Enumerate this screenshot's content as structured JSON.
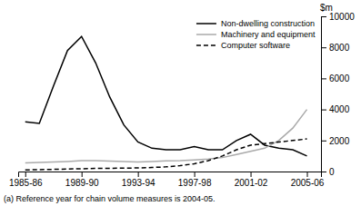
{
  "chart_data": {
    "type": "line",
    "ylabel": "$m",
    "annotations": [
      "(a) Reference year for chain volume measures is 2004-05."
    ],
    "x": [
      1985.5,
      1986.5,
      1987.5,
      1988.5,
      1989.5,
      1990.5,
      1991.5,
      1992.5,
      1993.5,
      1994.5,
      1995.5,
      1996.5,
      1997.5,
      1998.5,
      1999.5,
      2000.5,
      2001.5,
      2002.5,
      2003.5,
      2004.5,
      2005.5
    ],
    "xlim": [
      1985.0,
      2006.5
    ],
    "xticks": [
      {
        "value": 1985.5,
        "label": "1985-86"
      },
      {
        "value": 1989.5,
        "label": "1989-90"
      },
      {
        "value": 1993.5,
        "label": "1993-94"
      },
      {
        "value": 1997.5,
        "label": "1997-98"
      },
      {
        "value": 2001.5,
        "label": "2001-02"
      },
      {
        "value": 2005.5,
        "label": "2005-06"
      }
    ],
    "ylim": [
      0,
      10000
    ],
    "yticks": [
      0,
      2000,
      4000,
      6000,
      8000,
      10000
    ],
    "grid": false,
    "legend": "top-right",
    "series": [
      {
        "name": "Non-dwelling construction",
        "color": "#000000",
        "line_style": "solid",
        "values": [
          3200,
          3100,
          5500,
          7800,
          8700,
          7000,
          4800,
          3000,
          1900,
          1500,
          1400,
          1400,
          1600,
          1400,
          1400,
          2000,
          2400,
          1700,
          1500,
          1400,
          1000
        ]
      },
      {
        "name": "Machinery and equipment",
        "color": "#aaaaaa",
        "line_style": "solid",
        "values": [
          550,
          580,
          620,
          650,
          700,
          700,
          670,
          640,
          620,
          640,
          680,
          700,
          750,
          800,
          900,
          1100,
          1300,
          1500,
          2000,
          2800,
          4000
        ]
      },
      {
        "name": "Computer software",
        "color": "#000000",
        "line_style": "dashed",
        "values": [
          100,
          120,
          140,
          160,
          180,
          200,
          210,
          220,
          230,
          260,
          300,
          380,
          500,
          700,
          1000,
          1400,
          1700,
          1800,
          1900,
          2000,
          2100
        ]
      }
    ]
  }
}
